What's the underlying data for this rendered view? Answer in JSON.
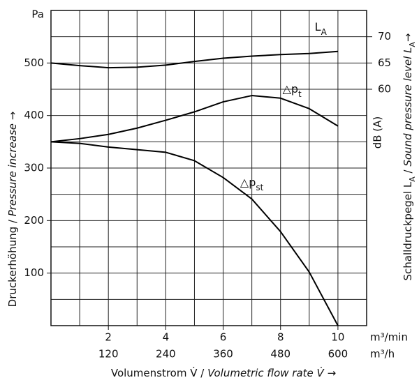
{
  "chart_data": {
    "type": "line",
    "x": [
      0,
      1,
      2,
      3,
      4,
      5,
      6,
      7,
      8,
      9,
      10
    ],
    "xlim": [
      0,
      11
    ],
    "xticks": [
      2,
      4,
      6,
      8,
      10
    ],
    "x_unit": "m³/min",
    "x2lim": [
      0,
      660
    ],
    "x2ticks": [
      120,
      240,
      360,
      480,
      600
    ],
    "x2_unit": "m³/h",
    "ylim": [
      0,
      600
    ],
    "yticks": [
      100,
      200,
      300,
      400,
      500
    ],
    "y_unit": "Pa",
    "y2lim": [
      15,
      75
    ],
    "y2ticks": [
      60,
      65,
      70
    ],
    "y2_unit": "dB (A)",
    "grid": true,
    "grid_step_x": 1,
    "grid_step_y": 50,
    "x_label": [
      {
        "text": "Volumenstrom V̇ / ",
        "style": "normal"
      },
      {
        "text": "Volumetric flow rate V̇",
        "style": "italic"
      },
      {
        "text": "  →",
        "style": "normal"
      }
    ],
    "y_label": [
      {
        "text": "Druckerhöhung / ",
        "style": "normal"
      },
      {
        "text": "Pressure increase",
        "style": "italic"
      },
      {
        "text": "  →",
        "style": "normal"
      }
    ],
    "y2_label": [
      {
        "text": "Schalldruckpegel L",
        "style": "normal"
      },
      {
        "text": "A",
        "style": "sub"
      },
      {
        "text": " / ",
        "style": "normal"
      },
      {
        "text": "Sound pressure level L",
        "style": "italic"
      },
      {
        "text": "A",
        "style": "sub"
      },
      {
        "text": "→",
        "style": "normal"
      }
    ],
    "series": [
      {
        "name": "L",
        "name_sub": "A",
        "axis": "y2",
        "color": "#000000",
        "label_at": [
          9.4,
          71.8
        ],
        "values": [
          65.0,
          64.5,
          64.1,
          64.2,
          64.6,
          65.3,
          65.9,
          66.3,
          66.6,
          66.8,
          67.2
        ]
      },
      {
        "name": "△p",
        "name_sub": "t",
        "color": "#000000",
        "label_at": [
          8.4,
          450
        ],
        "values": [
          350,
          356,
          364,
          376,
          391,
          407,
          426,
          438,
          433,
          413,
          380
        ]
      },
      {
        "name": "△p",
        "name_sub": "st",
        "color": "#000000",
        "label_at": [
          7.0,
          272
        ],
        "values": [
          350,
          347,
          340,
          335,
          330,
          314,
          282,
          241,
          179,
          102,
          0
        ]
      }
    ]
  }
}
